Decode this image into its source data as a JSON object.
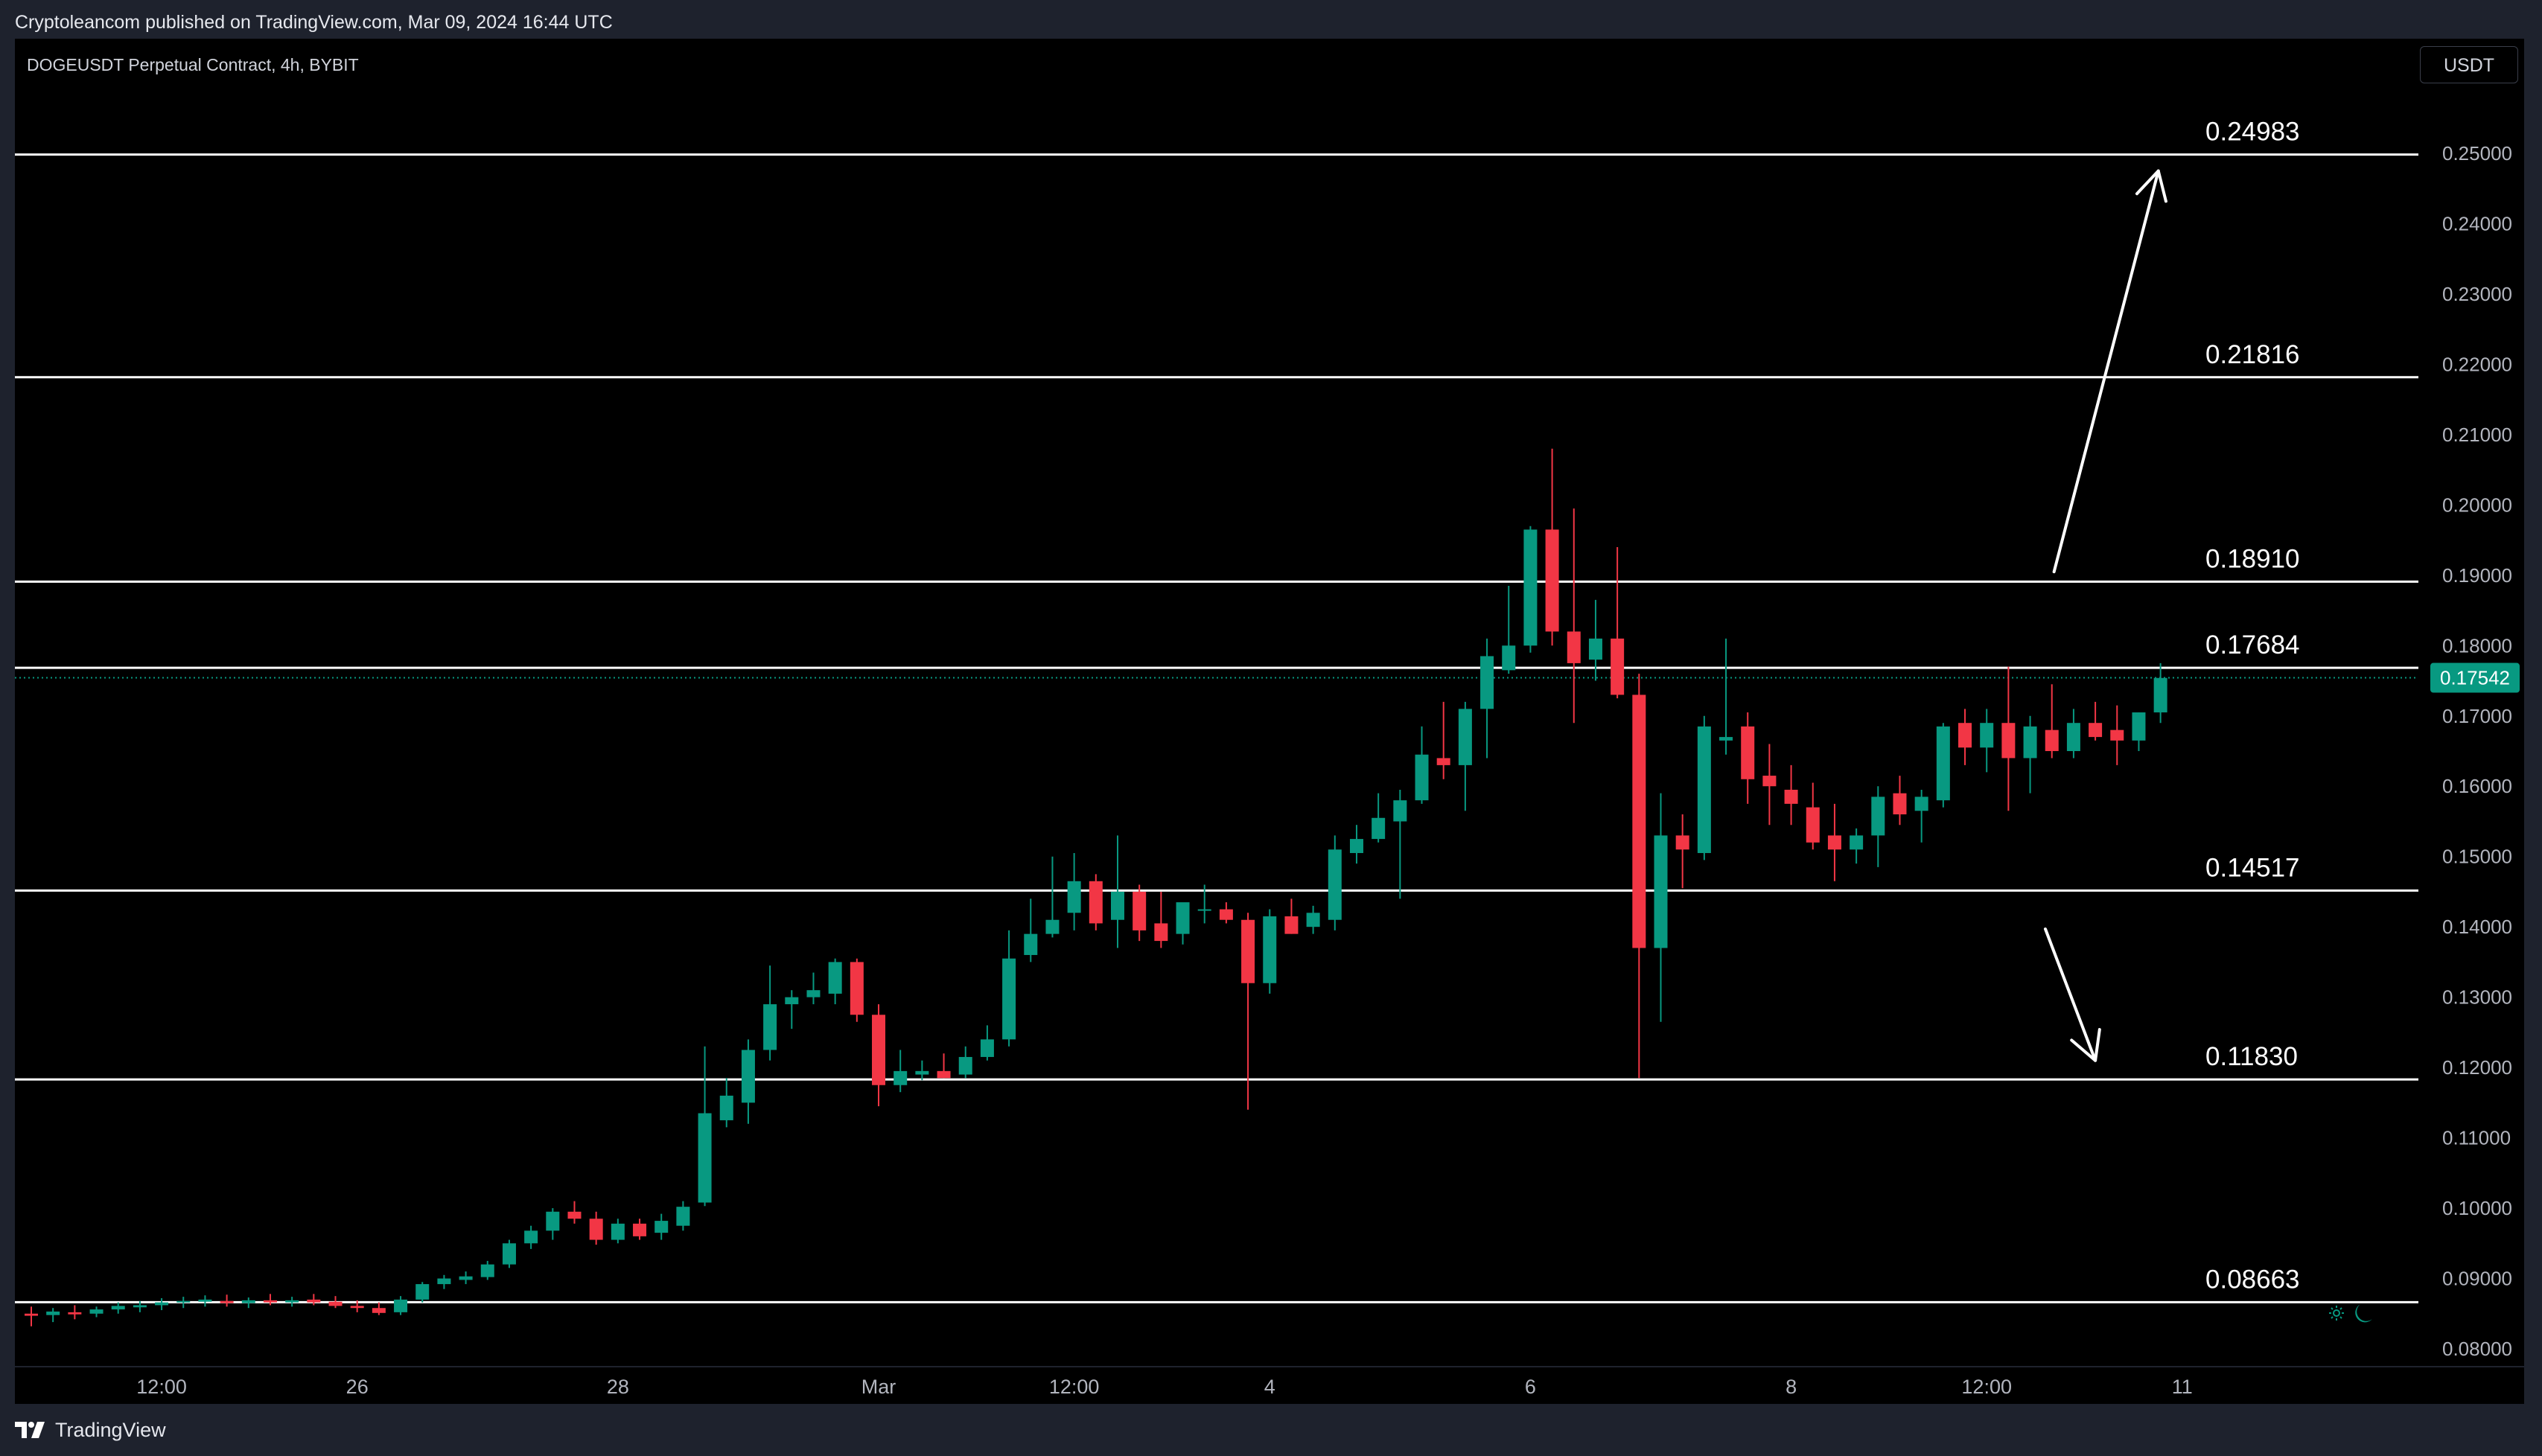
{
  "header": {
    "published_text": "Cryptoleancom published on TradingView.com, Mar 09, 2024 16:44 UTC"
  },
  "chart": {
    "symbol_title": "DOGEUSDT Perpetual Contract, 4h, BYBIT",
    "currency": "USDT",
    "colors": {
      "background": "#000000",
      "up": "#089981",
      "down": "#f23645",
      "axis_text": "#b2b5be",
      "level_line": "#ffffff",
      "price_badge": "#089981"
    }
  },
  "footer": {
    "logo_text": "TradingView"
  },
  "chart_data": {
    "type": "candlestick",
    "title": "",
    "xlabel": "",
    "ylabel": "",
    "ylim": [
      0.08,
      0.252
    ],
    "y_ticks": [
      "0.25000",
      "0.24000",
      "0.23000",
      "0.22000",
      "0.21000",
      "0.20000",
      "0.19000",
      "0.18000",
      "0.17000",
      "0.16000",
      "0.15000",
      "0.14000",
      "0.13000",
      "0.12000",
      "0.11000",
      "0.10000",
      "0.09000",
      "0.08000"
    ],
    "x_ticks": [
      {
        "label": "12:00",
        "bar": 6
      },
      {
        "label": "26",
        "bar": 15
      },
      {
        "label": "28",
        "bar": 27
      },
      {
        "label": "Mar",
        "bar": 39
      },
      {
        "label": "12:00",
        "bar": 48
      },
      {
        "label": "4",
        "bar": 57
      },
      {
        "label": "6",
        "bar": 69
      },
      {
        "label": "8",
        "bar": 81
      },
      {
        "label": "12:00",
        "bar": 90
      },
      {
        "label": "11",
        "bar": 99
      }
    ],
    "current_price": "0.17542",
    "levels": [
      {
        "label": "0.24983",
        "value": 0.24983
      },
      {
        "label": "0.21816",
        "value": 0.21816
      },
      {
        "label": "0.18910",
        "value": 0.1891
      },
      {
        "label": "0.17684",
        "value": 0.17684
      },
      {
        "label": "0.14517",
        "value": 0.14517
      },
      {
        "label": "0.11830",
        "value": 0.1183
      },
      {
        "label": "0.08663",
        "value": 0.08663
      }
    ],
    "arrows": [
      {
        "direction": "up",
        "from": {
          "bar": 93.1,
          "price": 0.1905
        },
        "to": {
          "bar": 97.9,
          "price": 0.2475
        }
      },
      {
        "direction": "down",
        "from": {
          "bar": 92.7,
          "price": 0.1397
        },
        "to": {
          "bar": 95.0,
          "price": 0.121
        }
      }
    ],
    "candles": [
      {
        "o": 0.085,
        "h": 0.086,
        "l": 0.0832,
        "c": 0.0847
      },
      {
        "o": 0.0848,
        "h": 0.0858,
        "l": 0.0838,
        "c": 0.0853
      },
      {
        "o": 0.0852,
        "h": 0.0862,
        "l": 0.0842,
        "c": 0.0849
      },
      {
        "o": 0.085,
        "h": 0.086,
        "l": 0.0845,
        "c": 0.0856
      },
      {
        "o": 0.0856,
        "h": 0.0866,
        "l": 0.085,
        "c": 0.0861
      },
      {
        "o": 0.0859,
        "h": 0.0868,
        "l": 0.0852,
        "c": 0.0862
      },
      {
        "o": 0.0862,
        "h": 0.0872,
        "l": 0.0855,
        "c": 0.0866
      },
      {
        "o": 0.0866,
        "h": 0.0874,
        "l": 0.0858,
        "c": 0.0868
      },
      {
        "o": 0.0867,
        "h": 0.0876,
        "l": 0.086,
        "c": 0.087
      },
      {
        "o": 0.0868,
        "h": 0.0877,
        "l": 0.086,
        "c": 0.0865
      },
      {
        "o": 0.0865,
        "h": 0.0873,
        "l": 0.0858,
        "c": 0.0869
      },
      {
        "o": 0.0869,
        "h": 0.0878,
        "l": 0.0862,
        "c": 0.0866
      },
      {
        "o": 0.0866,
        "h": 0.0874,
        "l": 0.086,
        "c": 0.0869
      },
      {
        "o": 0.087,
        "h": 0.0878,
        "l": 0.0862,
        "c": 0.0866
      },
      {
        "o": 0.0867,
        "h": 0.0875,
        "l": 0.0858,
        "c": 0.0861
      },
      {
        "o": 0.0861,
        "h": 0.0869,
        "l": 0.0852,
        "c": 0.0858
      },
      {
        "o": 0.0858,
        "h": 0.0866,
        "l": 0.0848,
        "c": 0.0851
      },
      {
        "o": 0.0852,
        "h": 0.0875,
        "l": 0.0848,
        "c": 0.087
      },
      {
        "o": 0.087,
        "h": 0.0895,
        "l": 0.0866,
        "c": 0.0892
      },
      {
        "o": 0.0892,
        "h": 0.0905,
        "l": 0.0885,
        "c": 0.09
      },
      {
        "o": 0.0898,
        "h": 0.091,
        "l": 0.0892,
        "c": 0.0903
      },
      {
        "o": 0.0902,
        "h": 0.0925,
        "l": 0.0898,
        "c": 0.092
      },
      {
        "o": 0.092,
        "h": 0.0955,
        "l": 0.0915,
        "c": 0.095
      },
      {
        "o": 0.095,
        "h": 0.0975,
        "l": 0.0942,
        "c": 0.0968
      },
      {
        "o": 0.0968,
        "h": 0.1,
        "l": 0.0955,
        "c": 0.0995
      },
      {
        "o": 0.0995,
        "h": 0.101,
        "l": 0.0978,
        "c": 0.0985
      },
      {
        "o": 0.0985,
        "h": 0.0995,
        "l": 0.0948,
        "c": 0.0955
      },
      {
        "o": 0.0955,
        "h": 0.0985,
        "l": 0.095,
        "c": 0.0978
      },
      {
        "o": 0.0978,
        "h": 0.0985,
        "l": 0.0955,
        "c": 0.096
      },
      {
        "o": 0.0965,
        "h": 0.0992,
        "l": 0.0955,
        "c": 0.0982
      },
      {
        "o": 0.0975,
        "h": 0.101,
        "l": 0.0968,
        "c": 0.1002
      },
      {
        "o": 0.1008,
        "h": 0.123,
        "l": 0.1003,
        "c": 0.1135
      },
      {
        "o": 0.1125,
        "h": 0.1185,
        "l": 0.1115,
        "c": 0.116
      },
      {
        "o": 0.115,
        "h": 0.124,
        "l": 0.112,
        "c": 0.1225
      },
      {
        "o": 0.1225,
        "h": 0.1345,
        "l": 0.121,
        "c": 0.129
      },
      {
        "o": 0.129,
        "h": 0.131,
        "l": 0.1255,
        "c": 0.13
      },
      {
        "o": 0.13,
        "h": 0.1335,
        "l": 0.129,
        "c": 0.131
      },
      {
        "o": 0.1305,
        "h": 0.1355,
        "l": 0.129,
        "c": 0.135
      },
      {
        "o": 0.135,
        "h": 0.1355,
        "l": 0.1265,
        "c": 0.1275
      },
      {
        "o": 0.1275,
        "h": 0.129,
        "l": 0.1145,
        "c": 0.1175
      },
      {
        "o": 0.1175,
        "h": 0.1225,
        "l": 0.1165,
        "c": 0.1195
      },
      {
        "o": 0.119,
        "h": 0.121,
        "l": 0.1182,
        "c": 0.1195
      },
      {
        "o": 0.1195,
        "h": 0.122,
        "l": 0.1185,
        "c": 0.1185
      },
      {
        "o": 0.119,
        "h": 0.123,
        "l": 0.1185,
        "c": 0.1215
      },
      {
        "o": 0.1215,
        "h": 0.126,
        "l": 0.121,
        "c": 0.124
      },
      {
        "o": 0.124,
        "h": 0.1395,
        "l": 0.123,
        "c": 0.1355
      },
      {
        "o": 0.136,
        "h": 0.144,
        "l": 0.135,
        "c": 0.139
      },
      {
        "o": 0.139,
        "h": 0.15,
        "l": 0.1385,
        "c": 0.141
      },
      {
        "o": 0.142,
        "h": 0.1505,
        "l": 0.1395,
        "c": 0.1465
      },
      {
        "o": 0.1465,
        "h": 0.1475,
        "l": 0.1395,
        "c": 0.1405
      },
      {
        "o": 0.141,
        "h": 0.153,
        "l": 0.137,
        "c": 0.145
      },
      {
        "o": 0.145,
        "h": 0.146,
        "l": 0.138,
        "c": 0.1395
      },
      {
        "o": 0.1405,
        "h": 0.145,
        "l": 0.137,
        "c": 0.138
      },
      {
        "o": 0.139,
        "h": 0.143,
        "l": 0.1375,
        "c": 0.1435
      },
      {
        "o": 0.1425,
        "h": 0.146,
        "l": 0.1405,
        "c": 0.1425
      },
      {
        "o": 0.1425,
        "h": 0.1435,
        "l": 0.1405,
        "c": 0.141
      },
      {
        "o": 0.141,
        "h": 0.142,
        "l": 0.114,
        "c": 0.132
      },
      {
        "o": 0.132,
        "h": 0.1425,
        "l": 0.1305,
        "c": 0.1415
      },
      {
        "o": 0.1415,
        "h": 0.144,
        "l": 0.139,
        "c": 0.139
      },
      {
        "o": 0.14,
        "h": 0.143,
        "l": 0.139,
        "c": 0.142
      },
      {
        "o": 0.141,
        "h": 0.153,
        "l": 0.1395,
        "c": 0.151
      },
      {
        "o": 0.1505,
        "h": 0.1545,
        "l": 0.149,
        "c": 0.1525
      },
      {
        "o": 0.1525,
        "h": 0.159,
        "l": 0.152,
        "c": 0.1555
      },
      {
        "o": 0.155,
        "h": 0.1595,
        "l": 0.144,
        "c": 0.158
      },
      {
        "o": 0.158,
        "h": 0.1685,
        "l": 0.1575,
        "c": 0.1645
      },
      {
        "o": 0.164,
        "h": 0.172,
        "l": 0.161,
        "c": 0.163
      },
      {
        "o": 0.163,
        "h": 0.172,
        "l": 0.1565,
        "c": 0.171
      },
      {
        "o": 0.171,
        "h": 0.181,
        "l": 0.164,
        "c": 0.1785
      },
      {
        "o": 0.1765,
        "h": 0.1885,
        "l": 0.176,
        "c": 0.18
      },
      {
        "o": 0.18,
        "h": 0.197,
        "l": 0.179,
        "c": 0.1965
      },
      {
        "o": 0.1965,
        "h": 0.208,
        "l": 0.18,
        "c": 0.182
      },
      {
        "o": 0.182,
        "h": 0.1995,
        "l": 0.169,
        "c": 0.1775
      },
      {
        "o": 0.178,
        "h": 0.1865,
        "l": 0.175,
        "c": 0.181
      },
      {
        "o": 0.181,
        "h": 0.194,
        "l": 0.1725,
        "c": 0.173
      },
      {
        "o": 0.173,
        "h": 0.176,
        "l": 0.1185,
        "c": 0.137
      },
      {
        "o": 0.137,
        "h": 0.159,
        "l": 0.1265,
        "c": 0.153
      },
      {
        "o": 0.153,
        "h": 0.156,
        "l": 0.1455,
        "c": 0.151
      },
      {
        "o": 0.1505,
        "h": 0.17,
        "l": 0.1495,
        "c": 0.1685
      },
      {
        "o": 0.1665,
        "h": 0.181,
        "l": 0.1645,
        "c": 0.167
      },
      {
        "o": 0.1685,
        "h": 0.1705,
        "l": 0.1575,
        "c": 0.161
      },
      {
        "o": 0.1615,
        "h": 0.166,
        "l": 0.1545,
        "c": 0.16
      },
      {
        "o": 0.1595,
        "h": 0.163,
        "l": 0.1545,
        "c": 0.1575
      },
      {
        "o": 0.157,
        "h": 0.1605,
        "l": 0.151,
        "c": 0.152
      },
      {
        "o": 0.153,
        "h": 0.1575,
        "l": 0.1465,
        "c": 0.151
      },
      {
        "o": 0.151,
        "h": 0.154,
        "l": 0.149,
        "c": 0.153
      },
      {
        "o": 0.153,
        "h": 0.16,
        "l": 0.1485,
        "c": 0.1585
      },
      {
        "o": 0.159,
        "h": 0.1615,
        "l": 0.1545,
        "c": 0.156
      },
      {
        "o": 0.1565,
        "h": 0.1595,
        "l": 0.152,
        "c": 0.1585
      },
      {
        "o": 0.158,
        "h": 0.169,
        "l": 0.157,
        "c": 0.1685
      },
      {
        "o": 0.169,
        "h": 0.171,
        "l": 0.163,
        "c": 0.1655
      },
      {
        "o": 0.1655,
        "h": 0.171,
        "l": 0.162,
        "c": 0.169
      },
      {
        "o": 0.169,
        "h": 0.177,
        "l": 0.1565,
        "c": 0.164
      },
      {
        "o": 0.164,
        "h": 0.17,
        "l": 0.159,
        "c": 0.1685
      },
      {
        "o": 0.168,
        "h": 0.1745,
        "l": 0.164,
        "c": 0.165
      },
      {
        "o": 0.165,
        "h": 0.171,
        "l": 0.164,
        "c": 0.169
      },
      {
        "o": 0.169,
        "h": 0.172,
        "l": 0.1665,
        "c": 0.167
      },
      {
        "o": 0.168,
        "h": 0.1715,
        "l": 0.163,
        "c": 0.1665
      },
      {
        "o": 0.1665,
        "h": 0.1705,
        "l": 0.165,
        "c": 0.1705
      },
      {
        "o": 0.1705,
        "h": 0.1775,
        "l": 0.169,
        "c": 0.1754
      }
    ]
  }
}
